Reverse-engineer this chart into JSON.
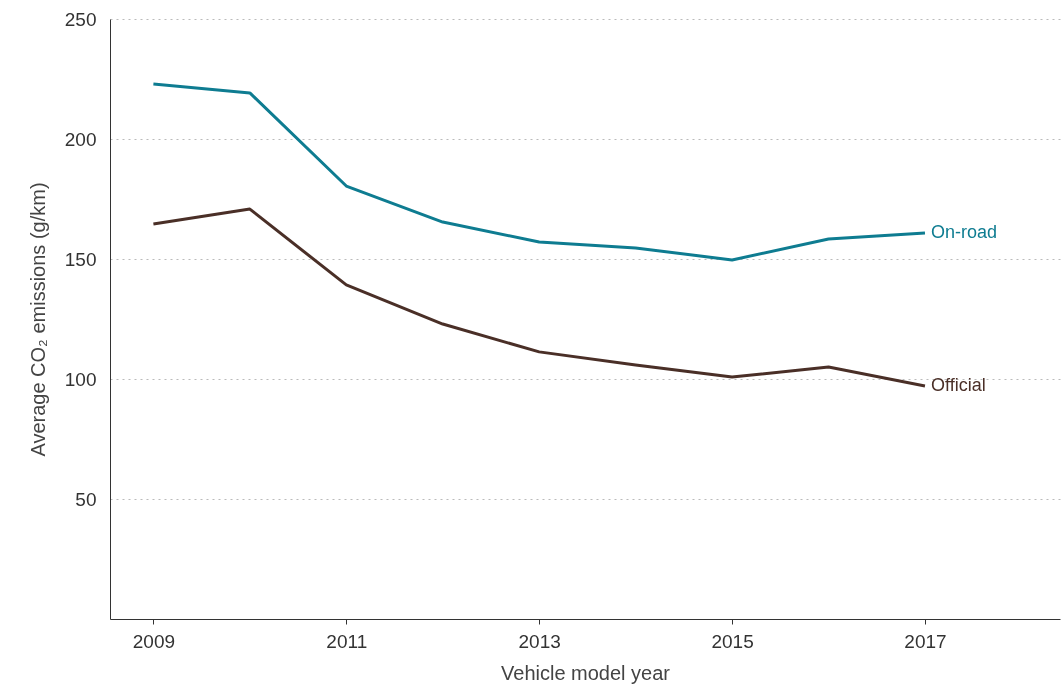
{
  "chart_data": {
    "type": "line",
    "xlabel": "Vehicle model year",
    "ylabel": "Average CO₂ emissions (g/km)",
    "x": [
      2009,
      2010,
      2011,
      2012,
      2013,
      2014,
      2015,
      2016,
      2017
    ],
    "series": [
      {
        "name": "On-road",
        "color": "#0e7c91",
        "values": [
          222.9,
          219.2,
          180.4,
          165.4,
          157.1,
          154.6,
          149.6,
          158.3,
          160.8
        ]
      },
      {
        "name": "Official",
        "color": "#4a2f27",
        "values": [
          164.6,
          170.8,
          139.2,
          122.9,
          111.3,
          105.8,
          100.8,
          105,
          97.1
        ]
      }
    ],
    "xlim": [
      2008.55,
      2018.4
    ],
    "xticks": [
      2009,
      2011,
      2013,
      2015,
      2017
    ],
    "ylim": [
      0,
      250
    ],
    "yticks": [
      50,
      100,
      150,
      200,
      250
    ],
    "grid": "y",
    "marker": "none",
    "line_style": "solid"
  }
}
